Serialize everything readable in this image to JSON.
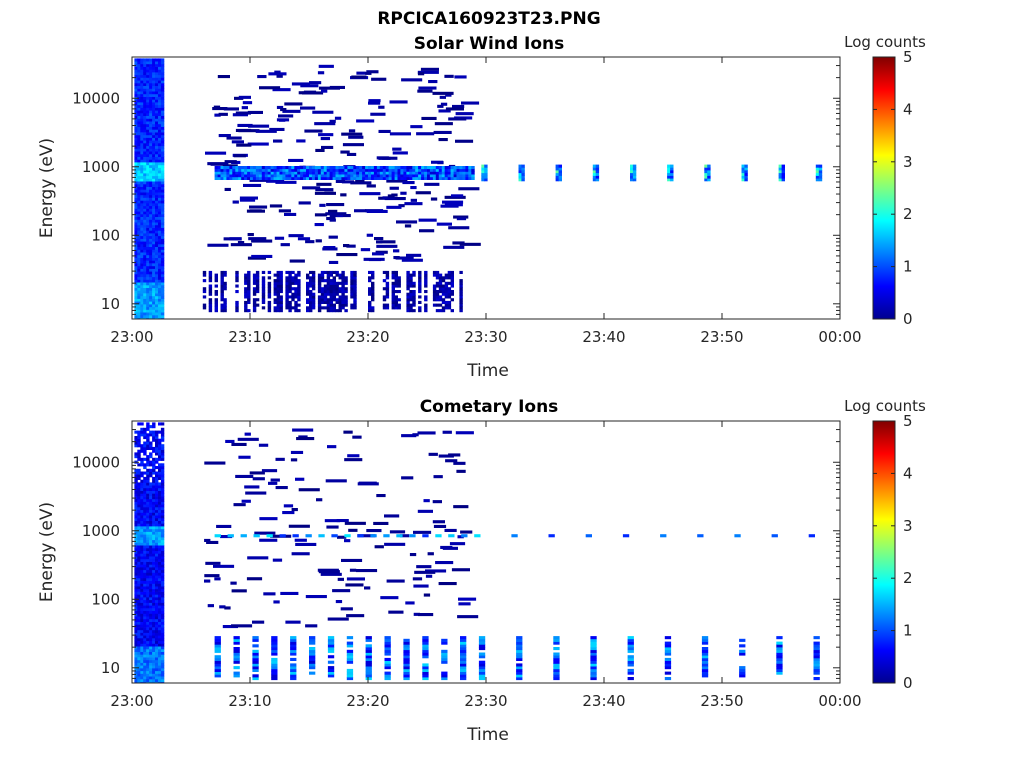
{
  "figure": {
    "title": "RPCICA160923T23.PNG"
  },
  "chart_data": [
    {
      "type": "heatmap",
      "title": "Solar Wind Ions",
      "xlabel": "Time",
      "ylabel": "Energy (eV)",
      "x_ticks": [
        "23:00",
        "23:10",
        "23:20",
        "23:30",
        "23:40",
        "23:50",
        "00:00"
      ],
      "x_range": [
        "23:00",
        "00:00"
      ],
      "y_scale": "log",
      "y_ticks": [
        10,
        100,
        1000,
        10000
      ],
      "y_range": [
        6,
        40000
      ],
      "colorbar": {
        "label": "Log counts",
        "range": [
          0,
          5
        ],
        "ticks": [
          0,
          1,
          2,
          3,
          4,
          5
        ],
        "colormap": "jet"
      },
      "features": [
        {
          "time_min": [
            0.2,
            2.6
          ],
          "energy_ev": [
            6,
            40000
          ],
          "log_counts": [
            0.5,
            2.0
          ],
          "note": "dense block"
        },
        {
          "time_min": [
            7,
            29
          ],
          "energy_ev": [
            700,
            1000
          ],
          "log_counts": [
            1.0,
            2.4
          ],
          "note": "beam around 800 eV"
        },
        {
          "time_min": [
            29.5,
            59
          ],
          "energy_ev": [
            700,
            1000
          ],
          "log_counts": [
            1.0,
            2.6
          ],
          "note": "periodic spots about every 3.1 min"
        },
        {
          "time_min": [
            6,
            28
          ],
          "energy_ev": [
            40,
            30000
          ],
          "log_counts": [
            0.0,
            0.3
          ],
          "note": "sparse low-count streaks"
        },
        {
          "time_min": [
            6,
            28
          ],
          "energy_ev": [
            7,
            35
          ],
          "log_counts": [
            0.0,
            0.4
          ],
          "note": "low-energy blocks"
        }
      ]
    },
    {
      "type": "heatmap",
      "title": "Cometary Ions",
      "xlabel": "Time",
      "ylabel": "Energy (eV)",
      "x_ticks": [
        "23:00",
        "23:10",
        "23:20",
        "23:30",
        "23:40",
        "23:50",
        "00:00"
      ],
      "x_range": [
        "23:00",
        "00:00"
      ],
      "y_scale": "log",
      "y_ticks": [
        10,
        100,
        1000,
        10000
      ],
      "y_range": [
        6,
        40000
      ],
      "colorbar": {
        "label": "Log counts",
        "range": [
          0,
          5
        ],
        "ticks": [
          0,
          1,
          2,
          3,
          4,
          5
        ],
        "colormap": "jet"
      },
      "features": [
        {
          "time_min": [
            0.2,
            2.6
          ],
          "energy_ev": [
            6,
            40000
          ],
          "log_counts": [
            0.3,
            1.8
          ],
          "note": "dense block"
        },
        {
          "time_min": [
            7,
            59
          ],
          "energy_ev": [
            750,
            900
          ],
          "log_counts": [
            0.8,
            1.8
          ],
          "note": "line near 850 eV"
        },
        {
          "time_min": [
            7,
            59
          ],
          "energy_ev": [
            7,
            30
          ],
          "log_counts": [
            0.5,
            1.8
          ],
          "note": "low-energy columns"
        },
        {
          "time_min": [
            6,
            28
          ],
          "energy_ev": [
            40,
            30000
          ],
          "log_counts": [
            0.0,
            0.3
          ],
          "note": "sparse low-count streaks"
        }
      ]
    }
  ]
}
